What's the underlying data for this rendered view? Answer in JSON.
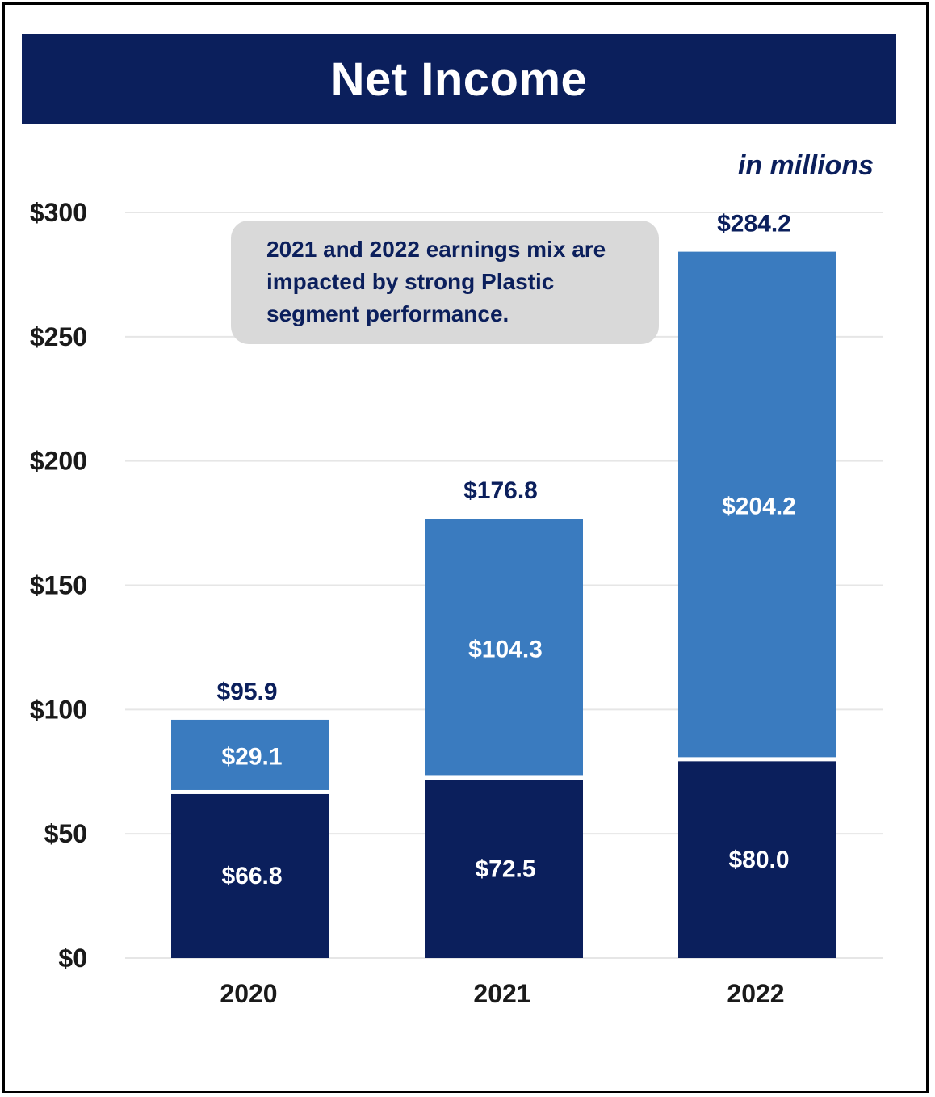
{
  "chart_data": {
    "type": "bar",
    "stacked": true,
    "title": "Net Income",
    "units_note": "in millions",
    "annotation": "2021 and 2022 earnings mix are impacted by strong Plastic segment performance.",
    "categories": [
      "2020",
      "2021",
      "2022"
    ],
    "series": [
      {
        "values": [
          66.8,
          72.5,
          80.0
        ],
        "labels": [
          "$66.8",
          "$72.5",
          "$80.0"
        ],
        "color": "#0b1f5c"
      },
      {
        "values": [
          29.1,
          104.3,
          204.2
        ],
        "labels": [
          "$29.1",
          "$104.3",
          "$204.2"
        ],
        "color": "#3a7bbf"
      }
    ],
    "totals": [
      95.9,
      176.8,
      284.2
    ],
    "total_labels": [
      "$95.9",
      "$176.8",
      "$284.2"
    ],
    "ylim": [
      0,
      300
    ],
    "yticks": [
      0,
      50,
      100,
      150,
      200,
      250,
      300
    ],
    "ytick_labels": [
      "$0",
      "$50",
      "$100",
      "$150",
      "$200",
      "$250",
      "$300"
    ],
    "xlabel": "",
    "ylabel": "",
    "grid": true,
    "legend": "none"
  }
}
